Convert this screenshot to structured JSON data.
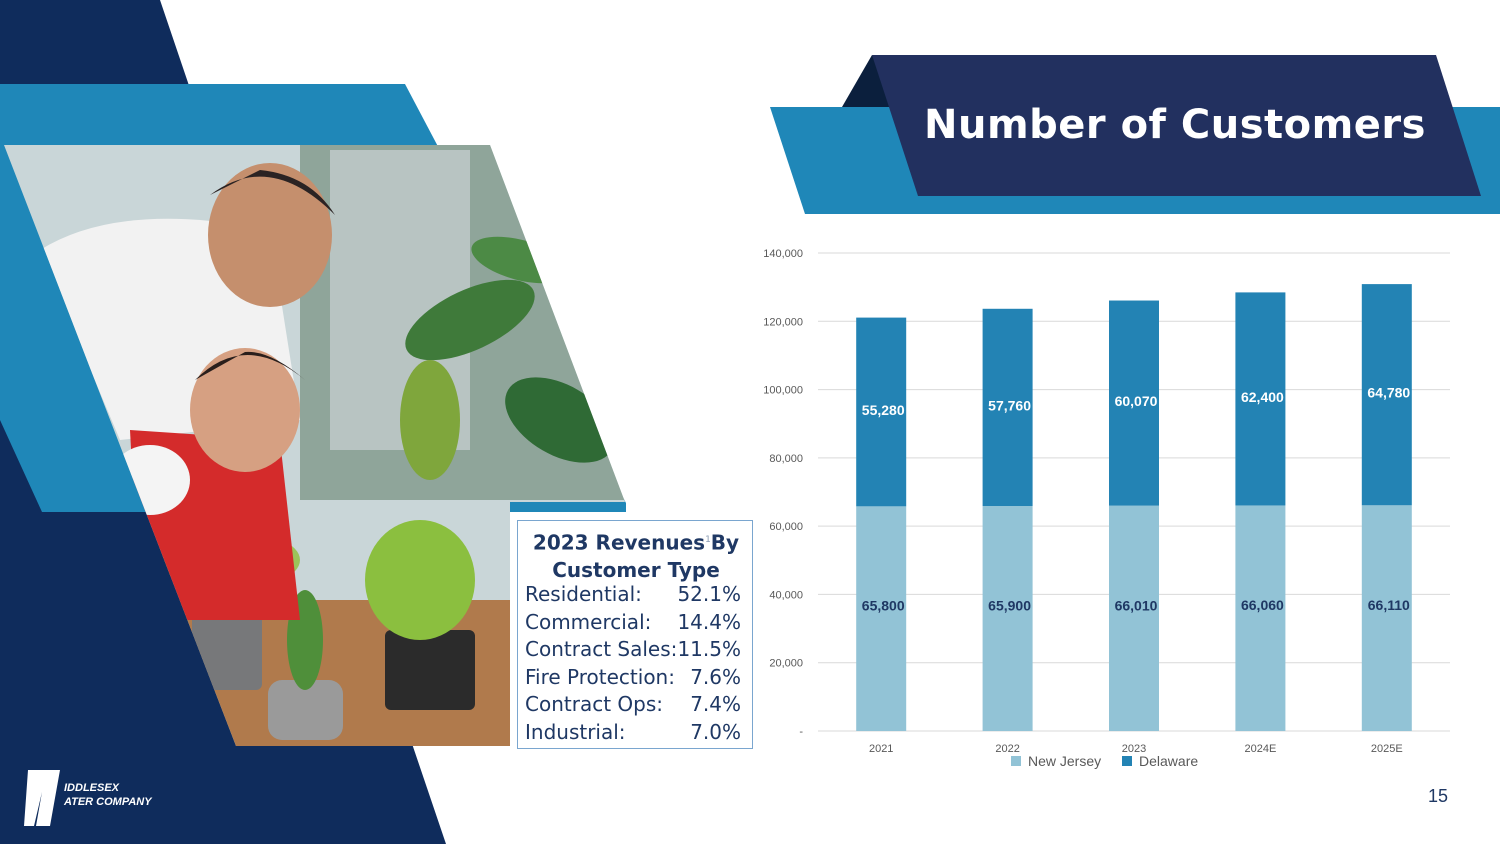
{
  "slide": {
    "title": "Number of Customers",
    "page_number": "15"
  },
  "logo": {
    "line1": "IDDLESEX",
    "line2": "ATER COMPANY"
  },
  "photo": {
    "description_icon": "family-watering-plants-photo"
  },
  "revenues": {
    "title_line1": "2023 Revenues",
    "footnote_mark": "1",
    "title_line1b": "By",
    "title_line2": "Customer Type",
    "rows": [
      {
        "label": "Residential:",
        "value": "52.1%"
      },
      {
        "label": "Commercial:",
        "value": "14.4%"
      },
      {
        "label": "Contract Sales:",
        "value": "11.5%"
      },
      {
        "label": "Fire Protection:",
        "value": "7.6%"
      },
      {
        "label": "Contract Ops:",
        "value": "7.4%"
      },
      {
        "label": "Industrial:",
        "value": "7.0%"
      }
    ]
  },
  "colors": {
    "navy": "#0f2c5c",
    "title_bg": "#22305f",
    "accent_blue": "#1f87b8",
    "new_jersey": "#92c3d6",
    "delaware": "#2383b4"
  },
  "chart_data": {
    "type": "bar",
    "stacked": true,
    "categories": [
      "2021",
      "2022",
      "2023",
      "2024E",
      "2025E"
    ],
    "series": [
      {
        "name": "New Jersey",
        "values": [
          65800,
          65900,
          66010,
          66060,
          66110
        ],
        "labels": [
          "65,800",
          "65,900",
          "66,010",
          "66,060",
          "66,110"
        ],
        "color": "#92c3d6"
      },
      {
        "name": "Delaware",
        "values": [
          55280,
          57760,
          60070,
          62400,
          64780
        ],
        "labels": [
          "55,280",
          "57,760",
          "60,070",
          "62,400",
          "64,780"
        ],
        "color": "#2383b4"
      }
    ],
    "ylim": [
      0,
      140000
    ],
    "yticks": [
      0,
      20000,
      40000,
      60000,
      80000,
      100000,
      120000,
      140000
    ],
    "ytick_labels": [
      "-",
      "20,000",
      "40,000",
      "60,000",
      "80,000",
      "100,000",
      "120,000",
      "140,000"
    ],
    "grid": true,
    "legend": "bottom"
  }
}
